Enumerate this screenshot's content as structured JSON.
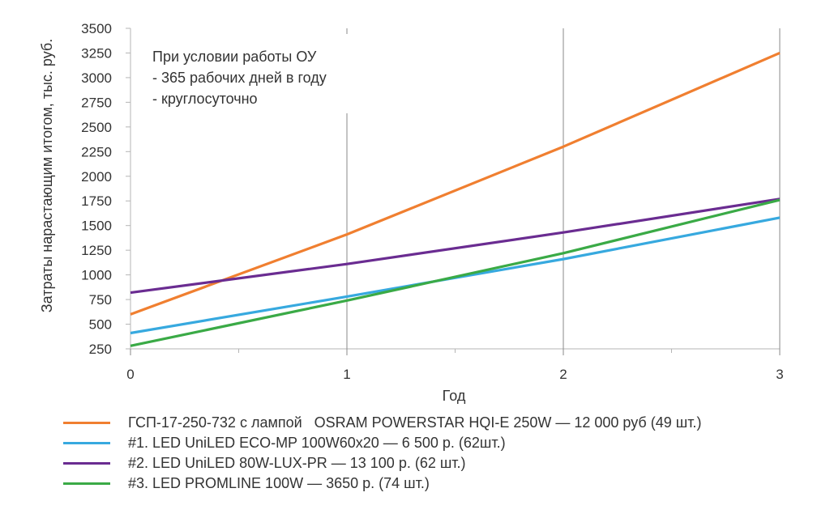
{
  "chart_data": {
    "type": "line",
    "title": "",
    "xlabel": "Год",
    "ylabel": "Затраты нарастающим итогом, тыс. руб.",
    "x": [
      0,
      1,
      2,
      3
    ],
    "xlim": [
      0,
      3
    ],
    "ylim": [
      250,
      3500
    ],
    "x_ticks": [
      "0",
      "1",
      "2",
      "3"
    ],
    "y_ticks": [
      "250",
      "500",
      "750",
      "1000",
      "1250",
      "1500",
      "1750",
      "2000",
      "2250",
      "2500",
      "2750",
      "3000",
      "3250",
      "3500"
    ],
    "annotation": [
      "При условии работы ОУ",
      "- 365 рабочих дней в году",
      "- круглосуточно"
    ],
    "legend_position": "bottom",
    "series": [
      {
        "name": "ГСП-17-250-732 с лампой   OSRAM POWERSTAR HQI-E 250W — 12 000 руб (49 шт.)",
        "color": "#f07f30",
        "values": [
          600,
          1410,
          2300,
          3250
        ]
      },
      {
        "name": "#1. LED UniLED ECO-MP 100W60x20 — 6 500 р. (62шт.)",
        "color": "#37a9df",
        "values": [
          410,
          780,
          1160,
          1580
        ]
      },
      {
        "name": "#2. LED UniLED 80W-LUX-PR — 13 100 р. (62 шт.)",
        "color": "#6a2c91",
        "values": [
          820,
          1110,
          1430,
          1770
        ]
      },
      {
        "name": "#3. LED PROMLINE 100W — 3650 р. (74 шт.)",
        "color": "#3aaa46",
        "values": [
          280,
          740,
          1220,
          1760
        ]
      }
    ]
  }
}
